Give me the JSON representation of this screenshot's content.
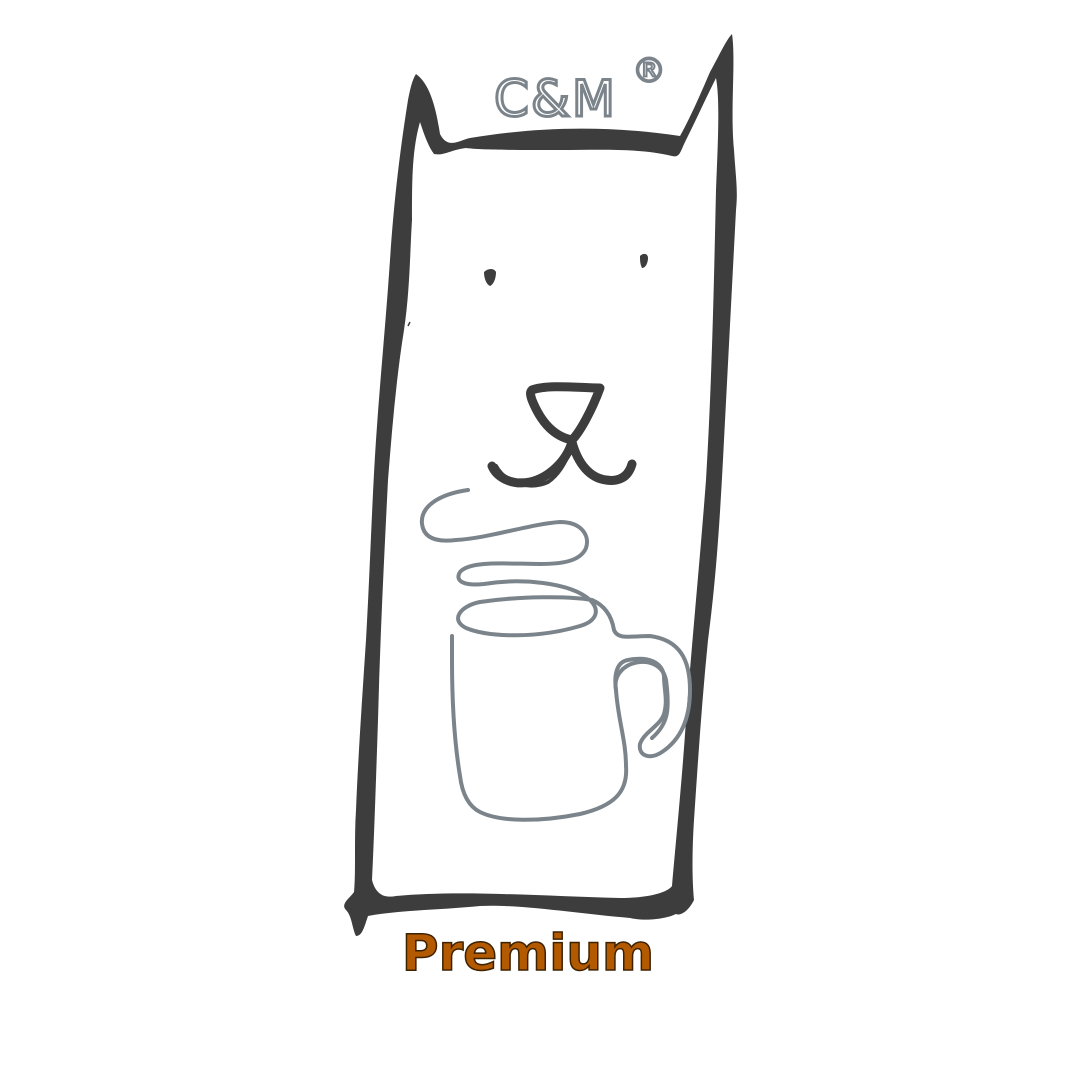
{
  "logo": {
    "brand_mark": "C&M",
    "registered_symbol": "®",
    "tagline": "Premium"
  },
  "colors": {
    "background": "#ffffff",
    "outline": "#3d3d3d",
    "mug": "#7c848b",
    "tagline": "#b35a00",
    "tagline_outline": "#3d2200"
  },
  "icons": {
    "mascot": "cat-icon",
    "mug": "coffee-mug-icon",
    "steam": "steam-icon"
  }
}
